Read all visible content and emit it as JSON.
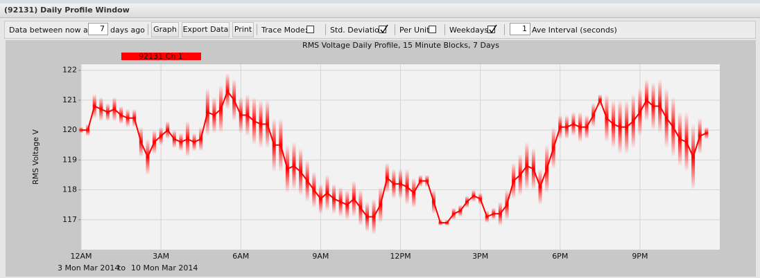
{
  "window": {
    "title": "(92131) Daily Profile Window"
  },
  "toolbar": {
    "days_before": "Data between now and",
    "days_value": "7",
    "days_after": "days ago",
    "buttons": [
      "Graph",
      "Export Data",
      "Print"
    ],
    "checkboxes": [
      {
        "label": "Trace Mode:",
        "checked": false
      },
      {
        "label": "Std. Deviation",
        "checked": true
      },
      {
        "label": "Per Unit",
        "checked": false
      },
      {
        "label": "Weekdays",
        "checked": true
      }
    ],
    "interval_value": "1",
    "interval_label": "Ave Interval (seconds)"
  },
  "chart_data": {
    "type": "line",
    "title": "RMS Voltage Daily Profile, 15 Minute Blocks, 7 Days",
    "y_label": "RMS Voltage V",
    "date_range": {
      "start": "3 Mon Mar 2014",
      "sep": "to",
      "end": "10 Mon Mar 2014"
    },
    "xlim": [
      0,
      24
    ],
    "xticks": [
      {
        "value": 0,
        "label": "12AM"
      },
      {
        "value": 3,
        "label": "3AM"
      },
      {
        "value": 6,
        "label": "6AM"
      },
      {
        "value": 9,
        "label": "9AM"
      },
      {
        "value": 12,
        "label": "12PM"
      },
      {
        "value": 15,
        "label": "3PM"
      },
      {
        "value": 18,
        "label": "6PM"
      },
      {
        "value": 21,
        "label": "9PM"
      }
    ],
    "ylim": [
      116,
      122.2
    ],
    "yticks": [
      117,
      118,
      119,
      120,
      121,
      122
    ],
    "grid": true,
    "x": [
      0,
      0.25,
      0.5,
      0.75,
      1,
      1.25,
      1.5,
      1.75,
      2,
      2.25,
      2.5,
      2.75,
      3,
      3.25,
      3.5,
      3.75,
      4,
      4.25,
      4.5,
      4.75,
      5,
      5.25,
      5.5,
      5.75,
      6,
      6.25,
      6.5,
      6.75,
      7,
      7.25,
      7.5,
      7.75,
      8,
      8.25,
      8.5,
      8.75,
      9,
      9.25,
      9.5,
      9.75,
      10,
      10.25,
      10.5,
      10.75,
      11,
      11.25,
      11.5,
      11.75,
      12,
      12.25,
      12.5,
      12.75,
      13,
      13.25,
      13.5,
      13.75,
      14,
      14.25,
      14.5,
      14.75,
      15,
      15.25,
      15.5,
      15.75,
      16,
      16.25,
      16.5,
      16.75,
      17,
      17.25,
      17.5,
      17.75,
      18,
      18.25,
      18.5,
      18.75,
      19,
      19.25,
      19.5,
      19.75,
      20,
      20.25,
      20.5,
      20.75,
      21,
      21.25,
      21.5,
      21.75,
      22,
      22.25,
      22.5,
      22.75,
      23,
      23.25,
      23.5
    ],
    "series": [
      {
        "name": "92131 Ch 1",
        "color": "#ff0000",
        "values": [
          120.0,
          120.0,
          120.8,
          120.7,
          120.6,
          120.7,
          120.5,
          120.4,
          120.4,
          119.6,
          119.1,
          119.6,
          119.8,
          120.0,
          119.7,
          119.6,
          119.7,
          119.6,
          119.7,
          120.6,
          120.5,
          120.7,
          121.3,
          121.0,
          120.5,
          120.5,
          120.3,
          120.2,
          120.2,
          119.5,
          119.5,
          118.7,
          118.8,
          118.6,
          118.3,
          118.0,
          117.7,
          117.9,
          117.7,
          117.6,
          117.5,
          117.7,
          117.4,
          117.1,
          117.1,
          117.5,
          118.4,
          118.2,
          118.2,
          118.1,
          117.9,
          118.3,
          118.3,
          117.6,
          116.9,
          116.9,
          117.2,
          117.3,
          117.6,
          117.8,
          117.7,
          117.1,
          117.2,
          117.2,
          117.5,
          118.3,
          118.5,
          118.8,
          118.7,
          118.1,
          118.7,
          119.4,
          120.1,
          120.1,
          120.2,
          120.1,
          120.1,
          120.5,
          121.0,
          120.4,
          120.2,
          120.1,
          120.1,
          120.3,
          120.6,
          121.0,
          120.8,
          120.8,
          120.4,
          120.1,
          119.7,
          119.6,
          119.1,
          119.8,
          119.9
        ],
        "errors": [
          0.1,
          0.2,
          0.4,
          0.4,
          0.3,
          0.4,
          0.3,
          0.3,
          0.3,
          0.5,
          0.6,
          0.4,
          0.3,
          0.3,
          0.3,
          0.3,
          0.6,
          0.3,
          0.4,
          0.8,
          0.6,
          0.8,
          0.6,
          0.7,
          0.6,
          0.7,
          0.8,
          0.8,
          0.8,
          0.9,
          0.9,
          0.8,
          0.8,
          0.8,
          0.7,
          0.6,
          0.5,
          0.6,
          0.5,
          0.5,
          0.5,
          0.6,
          0.6,
          0.5,
          0.6,
          0.6,
          0.5,
          0.5,
          0.5,
          0.6,
          0.5,
          0.2,
          0.2,
          0.4,
          0.1,
          0.1,
          0.2,
          0.2,
          0.2,
          0.2,
          0.2,
          0.2,
          0.2,
          0.4,
          0.5,
          0.6,
          0.7,
          0.8,
          0.7,
          0.6,
          0.8,
          0.7,
          0.4,
          0.4,
          0.4,
          0.5,
          0.4,
          0.4,
          0.2,
          0.8,
          0.8,
          0.9,
          0.9,
          0.9,
          0.8,
          0.7,
          0.8,
          0.9,
          1.0,
          1.0,
          0.9,
          1.0,
          1.1,
          0.6,
          0.2
        ]
      }
    ]
  }
}
